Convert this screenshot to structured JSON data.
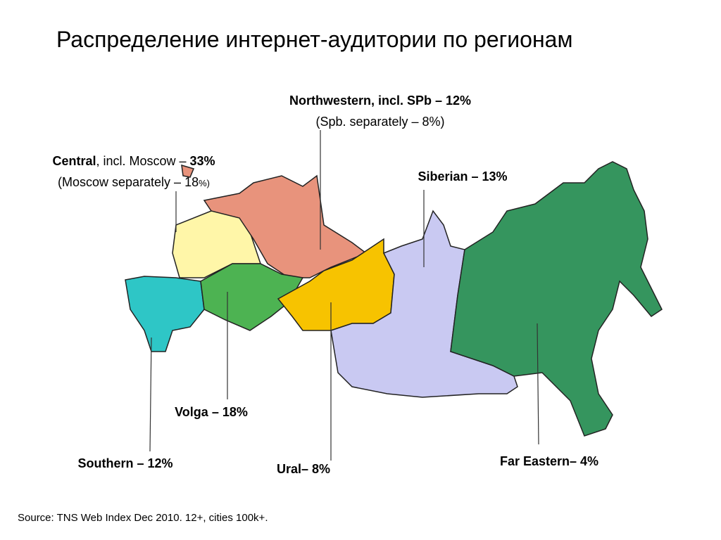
{
  "title": "Распределение интернет-аудитории по регионам",
  "regions": [
    [
      [
        "Northwestern, incl. SPb – 12%"
      ],
      [
        "(Spb. separately – 8%)"
      ]
    ],
    [
      [
        "Central",
        ", incl. Moscow – ",
        "33%"
      ],
      [
        "(Moscow separately – 18",
        "%)"
      ]
    ],
    [
      [
        "Siberian – 13%"
      ]
    ],
    [
      [
        "Volga – 18%"
      ]
    ],
    [
      [
        "Southern – 12%"
      ]
    ],
    [
      [
        "Ural– 8%"
      ]
    ],
    [
      [
        "Far Eastern– 4%"
      ]
    ]
  ],
  "source": "Source: TNS Web Index Dec 2010. 12+, cities 100k+."
}
